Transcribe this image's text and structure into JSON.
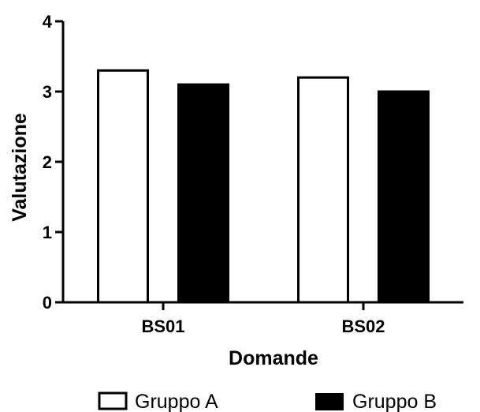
{
  "chart_data": {
    "type": "bar",
    "categories": [
      "BS01",
      "BS02"
    ],
    "series": [
      {
        "name": "Gruppo A",
        "values": [
          3.3,
          3.2
        ],
        "fill": "#ffffff",
        "stroke": "#000000"
      },
      {
        "name": "Gruppo B",
        "values": [
          3.1,
          3.0
        ],
        "fill": "#000000",
        "stroke": "#000000"
      }
    ],
    "xlabel": "Domande",
    "ylabel": "Valutazione",
    "ylim": [
      0,
      4
    ],
    "yticks": [
      "0",
      "1",
      "2",
      "3",
      "4"
    ],
    "grid": false,
    "legend_position": "bottom"
  }
}
